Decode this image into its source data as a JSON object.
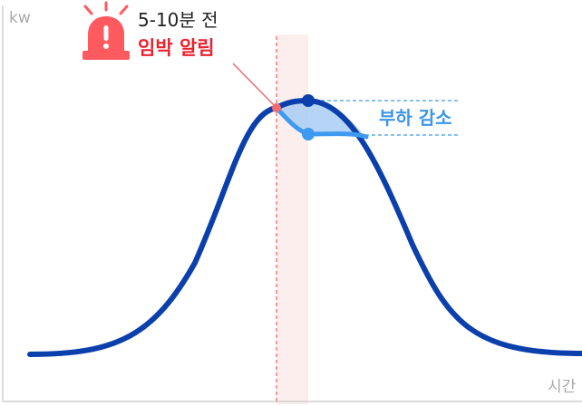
{
  "axes": {
    "y_label": "kw",
    "x_label": "시간"
  },
  "alert": {
    "icon": "siren-icon",
    "line1": "5-10분 전",
    "line2": "임박 알림"
  },
  "reduction": {
    "label": "부하 감소"
  },
  "colors": {
    "curve": "#0a3fac",
    "reduced_curve": "#3d9af0",
    "reduced_fill": "#a9cdf3",
    "alert_red": "#e8232f",
    "alert_icon": "#ff5a5f",
    "highlight_band": "#fdeeee",
    "axis": "#cfcfcf",
    "dashed_guide": "#3d9af0"
  }
}
